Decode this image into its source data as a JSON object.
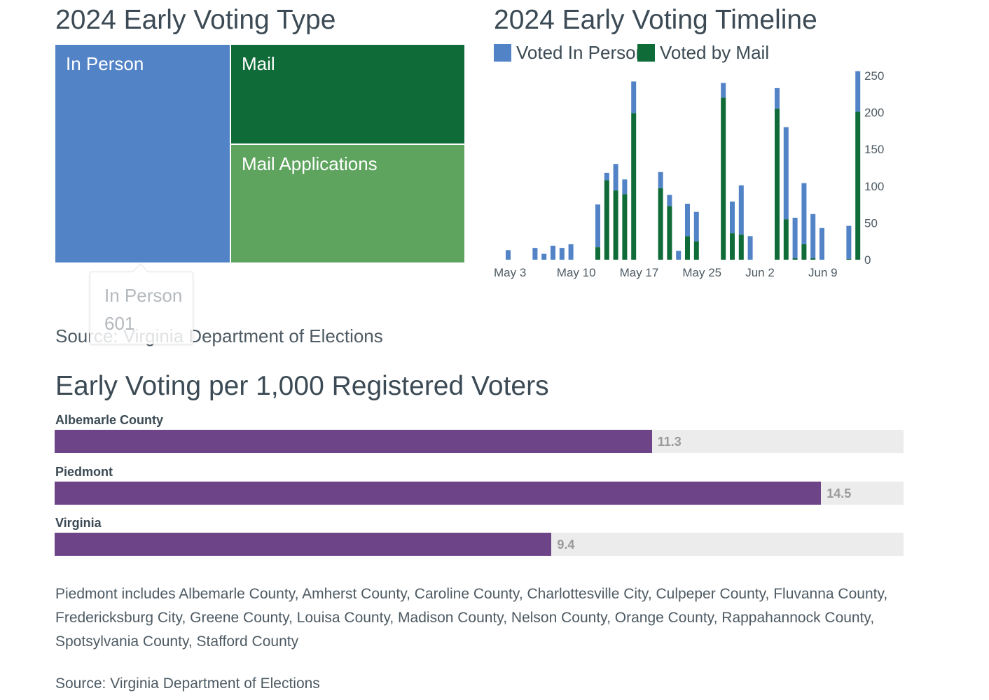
{
  "titles": {
    "type": "2024 Early Voting Type",
    "timeline": "2024 Early Voting Timeline",
    "per1000": "Early Voting per 1,000 Registered Voters"
  },
  "treemap": {
    "cells": [
      {
        "label": "In Person",
        "color": "#5283c6"
      },
      {
        "label": "Mail",
        "color": "#0f6b37"
      },
      {
        "label": "Mail Applications",
        "color": "#5ea45f"
      }
    ]
  },
  "tooltip": {
    "name": "In Person",
    "value": "601"
  },
  "sources": {
    "top": "Source: Virginia Department of Elections",
    "bottom": "Source: Virginia Department of Elections"
  },
  "note": "Piedmont includes Albemarle County, Amherst County, Caroline County, Charlottesville City, Culpeper County, Fluvanna County, Fredericksburg City, Greene County, Louisa County, Madison County, Nelson County, Orange County, Rappahannock County, Spotsylvania County, Stafford County",
  "chart_data": [
    {
      "type": "bar",
      "stacked": true,
      "title": "2024 Early Voting Timeline",
      "legend_position": "top-left",
      "x_tick_labels": [
        "May 3",
        "May 10",
        "May 17",
        "May 25",
        "Jun 2",
        "Jun 9"
      ],
      "y_tick_labels": [
        "0",
        "50",
        "100",
        "150",
        "200",
        "250"
      ],
      "ylim": [
        0,
        250
      ],
      "y_axis_side": "right",
      "grid": false,
      "x_axis_type": "category",
      "series": [
        {
          "name": "Voted In Person",
          "color": "#5283c6"
        },
        {
          "name": "Voted by Mail",
          "color": "#0f6b37"
        }
      ],
      "groups": [
        {
          "bars": [
            {
              "in_person": 13,
              "mail": 0
            },
            null,
            null,
            {
              "in_person": 16,
              "mail": 0
            },
            {
              "in_person": 8,
              "mail": 0
            },
            {
              "in_person": 19,
              "mail": 0
            },
            {
              "in_person": 16,
              "mail": 0
            },
            {
              "in_person": 21,
              "mail": 0
            }
          ]
        },
        {
          "bars": [
            {
              "in_person": 58,
              "mail": 17
            },
            {
              "in_person": 10,
              "mail": 108
            },
            {
              "in_person": 36,
              "mail": 94
            },
            {
              "in_person": 20,
              "mail": 89
            },
            {
              "in_person": 43,
              "mail": 199
            }
          ]
        },
        {
          "bars": [
            {
              "in_person": 22,
              "mail": 97
            },
            {
              "in_person": 15,
              "mail": 73
            },
            {
              "in_person": 12,
              "mail": 0
            },
            {
              "in_person": 44,
              "mail": 32
            },
            {
              "in_person": 40,
              "mail": 25
            }
          ]
        },
        {
          "bars": [
            {
              "in_person": 20,
              "mail": 220
            },
            {
              "in_person": 43,
              "mail": 36
            },
            {
              "in_person": 67,
              "mail": 34
            },
            {
              "in_person": 32,
              "mail": 0
            }
          ]
        },
        {
          "bars": [
            {
              "in_person": 28,
              "mail": 205
            },
            {
              "in_person": 125,
              "mail": 55
            },
            {
              "in_person": 55,
              "mail": 2
            },
            {
              "in_person": 83,
              "mail": 21
            },
            {
              "in_person": 60,
              "mail": 2
            },
            {
              "in_person": 43,
              "mail": 0
            }
          ]
        },
        {
          "bars": [
            {
              "in_person": 45,
              "mail": 1
            },
            {
              "in_person": 55,
              "mail": 201
            }
          ]
        }
      ]
    },
    {
      "type": "bar",
      "orientation": "horizontal",
      "title": "Early Voting per 1,000 Registered Voters",
      "categories": [
        "Albemarle County",
        "Piedmont",
        "Virginia"
      ],
      "values": [
        11.3,
        14.5,
        9.4
      ],
      "value_labels": [
        "11.3",
        "14.5",
        "9.4"
      ],
      "xlim": [
        0,
        16.06
      ],
      "bar_color": "#6d4488",
      "track_color": "#ececec"
    },
    {
      "type": "treemap",
      "title": "2024 Early Voting Type",
      "labels": [
        "In Person",
        "Mail",
        "Mail Applications"
      ],
      "colors": [
        "#5283c6",
        "#0f6b37",
        "#5ea45f"
      ],
      "highlighted": {
        "label": "In Person",
        "value": 601
      }
    }
  ]
}
